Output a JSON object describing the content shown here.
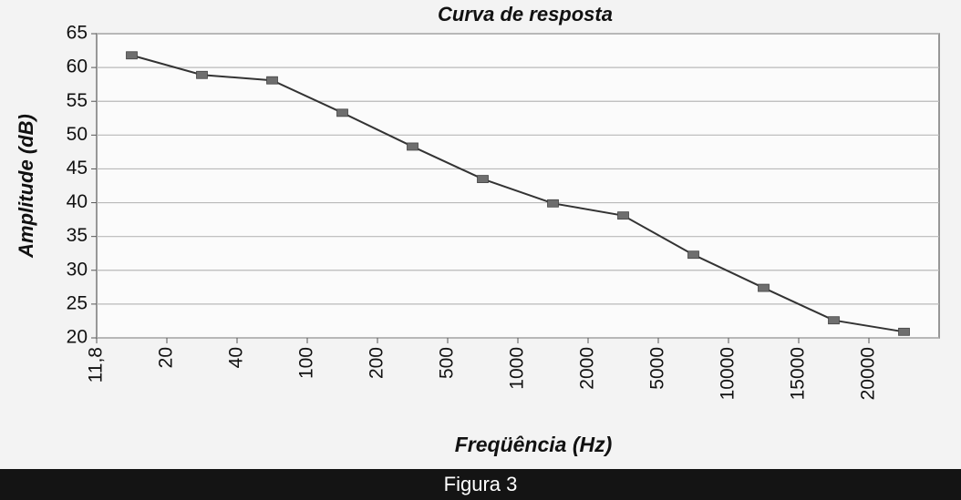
{
  "chart_data": {
    "type": "line",
    "title": "Curva de resposta",
    "x_label": "Freqüência (Hz)",
    "y_label": "Amplitude (dB)",
    "categories": [
      "11,8",
      "20",
      "40",
      "100",
      "200",
      "500",
      "1000",
      "2000",
      "5000",
      "10000",
      "15000",
      "20000"
    ],
    "values": [
      61.8,
      58.9,
      58.1,
      53.3,
      48.3,
      43.5,
      39.9,
      38.1,
      32.3,
      27.4,
      22.6,
      20.9
    ],
    "color": "#333333",
    "marker_color": "#6e6e6e",
    "ylim": [
      20,
      65
    ],
    "yticks": [
      20,
      25,
      30,
      35,
      40,
      45,
      50,
      55,
      60,
      65
    ],
    "grid": true,
    "caption": "Figura 3"
  }
}
